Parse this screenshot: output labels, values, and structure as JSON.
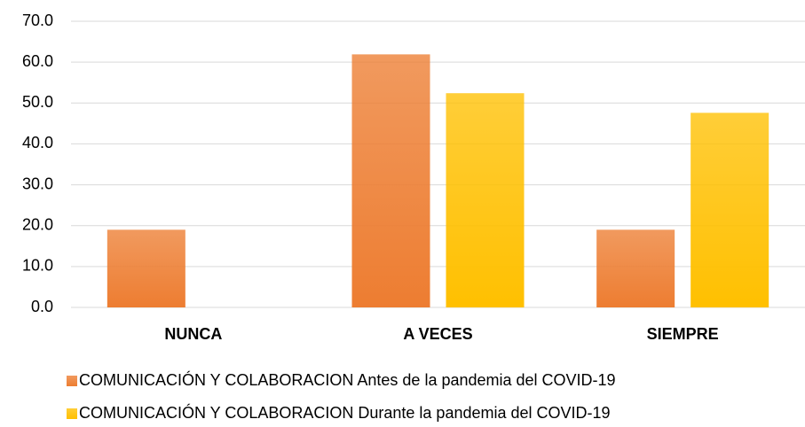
{
  "chart_data": {
    "type": "bar",
    "categories": [
      "NUNCA",
      "A VECES",
      "SIEMPRE"
    ],
    "series": [
      {
        "name": "COMUNICACIÓN Y COLABORACION Antes de la pandemia del COVID-19",
        "color": "#ed7d31",
        "values": [
          19.0,
          61.9,
          19.0
        ]
      },
      {
        "name": "COMUNICACIÓN Y COLABORACION Durante la pandemia del COVID-19",
        "color": "#ffc000",
        "values": [
          0,
          52.4,
          47.6
        ]
      }
    ],
    "ylim": [
      0,
      70
    ],
    "yticks": [
      {
        "value": 0,
        "label": "0.0"
      },
      {
        "value": 10,
        "label": "10.0"
      },
      {
        "value": 20,
        "label": "20.0"
      },
      {
        "value": 30,
        "label": "30.0"
      },
      {
        "value": 40,
        "label": "40.0"
      },
      {
        "value": 50,
        "label": "50.0"
      },
      {
        "value": 60,
        "label": "60.0"
      },
      {
        "value": 70,
        "label": "70.0"
      }
    ],
    "grid": true,
    "legend": "bottom"
  }
}
